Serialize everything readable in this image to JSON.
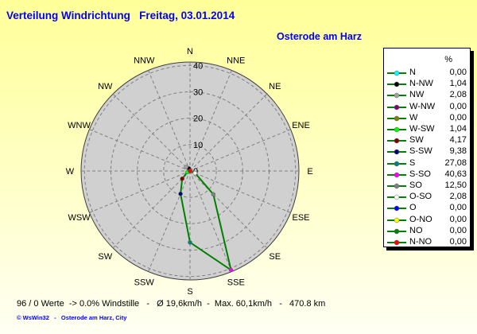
{
  "title": "Verteilung Windrichtung   Freitag, 03.01.2014",
  "subtitle": "Osterode am Harz",
  "chart_data": {
    "type": "polar-line",
    "direction_labels": [
      "N",
      "NNE",
      "NE",
      "ENE",
      "E",
      "ESE",
      "SE",
      "SSE",
      "S",
      "SSW",
      "SW",
      "WSW",
      "W",
      "WNW",
      "NW",
      "NNW"
    ],
    "radial_ticks": [
      0,
      10,
      20,
      30,
      40
    ],
    "rmax": 41.3,
    "grid": true,
    "line_color": "#008000",
    "legend_header": "%",
    "legend_placement": "right",
    "series": [
      {
        "name": "N",
        "angle": 0,
        "value": 0.0,
        "display": "0,00",
        "color": "#00ffff"
      },
      {
        "name": "N-NW",
        "angle": 337.5,
        "value": 1.04,
        "display": "1,04",
        "color": "#000000"
      },
      {
        "name": "NW",
        "angle": 315,
        "value": 2.08,
        "display": "2,08",
        "color": "#a0a0a0"
      },
      {
        "name": "W-NW",
        "angle": 292.5,
        "value": 0.0,
        "display": "0,00",
        "color": "#800080"
      },
      {
        "name": "W",
        "angle": 270,
        "value": 0.0,
        "display": "0,00",
        "color": "#808000"
      },
      {
        "name": "W-SW",
        "angle": 247.5,
        "value": 1.04,
        "display": "1,04",
        "color": "#00ff00"
      },
      {
        "name": "SW",
        "angle": 225,
        "value": 4.17,
        "display": "4,17",
        "color": "#800000"
      },
      {
        "name": "S-SW",
        "angle": 202.5,
        "value": 9.38,
        "display": "9,38",
        "color": "#000080"
      },
      {
        "name": "S",
        "angle": 180,
        "value": 27.08,
        "display": "27,08",
        "color": "#008080"
      },
      {
        "name": "S-SO",
        "angle": 157.5,
        "value": 40.63,
        "display": "40,63",
        "color": "#ff00ff"
      },
      {
        "name": "SO",
        "angle": 135,
        "value": 12.5,
        "display": "12,50",
        "color": "#808080"
      },
      {
        "name": "O-SO",
        "angle": 112.5,
        "value": 2.08,
        "display": "2,08",
        "color": "#ffffff"
      },
      {
        "name": "O",
        "angle": 90,
        "value": 0.0,
        "display": "0,00",
        "color": "#0000ff"
      },
      {
        "name": "O-NO",
        "angle": 67.5,
        "value": 0.0,
        "display": "0,00",
        "color": "#ffff00"
      },
      {
        "name": "NO",
        "angle": 45,
        "value": 0.0,
        "display": "0,00",
        "color": "#008000"
      },
      {
        "name": "N-NO",
        "angle": 22.5,
        "value": 0.0,
        "display": "0,00",
        "color": "#ff0000"
      }
    ]
  },
  "footer": "96 / 0 Werte  -> 0.0% Windstille   -   Ø 19,6km/h  -  Max. 60,1km/h   -   470.8 km",
  "copyright": "© WsWin32   -   Osterode am Harz, City"
}
